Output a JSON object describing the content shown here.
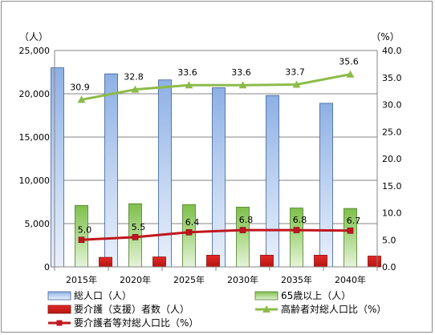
{
  "chart_data": {
    "type": "bar",
    "categories": [
      "2015年",
      "2020年",
      "2025年",
      "2030年",
      "2035年",
      "2040年"
    ],
    "left_axis": {
      "unit": "（人）",
      "ylim": [
        0,
        25000
      ],
      "ticks": [
        "0",
        "5,000",
        "10,000",
        "15,000",
        "20,000",
        "25,000"
      ]
    },
    "right_axis": {
      "unit": "（%）",
      "ylim": [
        0,
        40
      ],
      "ticks": [
        "0.0",
        "5.0",
        "10.0",
        "15.0",
        "20.0",
        "25.0",
        "30.0",
        "35.0",
        "40.0"
      ]
    },
    "grid": true,
    "legend_position": "bottom",
    "series": [
      {
        "name": "総人口（人）",
        "kind": "bar",
        "axis": "left",
        "color": "#9ab8e6",
        "values": [
          23000,
          22300,
          21600,
          20700,
          19800,
          18900
        ]
      },
      {
        "name": "65歳以上（人）",
        "kind": "bar",
        "axis": "left",
        "color": "#8cc55c",
        "values": [
          7100,
          7300,
          7200,
          6900,
          6800,
          6750
        ]
      },
      {
        "name": "要介護（支援）者数（人）",
        "kind": "bar",
        "axis": "left",
        "color": "#e02020",
        "values": [
          1100,
          1150,
          1350,
          1350,
          1350,
          1250
        ]
      },
      {
        "name": "高齢者対総人口比（%）",
        "kind": "line",
        "axis": "right",
        "color": "#8dbb4a",
        "marker": "triangle",
        "values": [
          30.9,
          32.8,
          33.6,
          33.6,
          33.7,
          35.6
        ],
        "labels": [
          "30.9",
          "32.8",
          "33.6",
          "33.6",
          "33.7",
          "35.6"
        ]
      },
      {
        "name": "要介護者等対総人口比（%）",
        "kind": "line",
        "axis": "right",
        "color": "#c0161e",
        "marker": "square",
        "values": [
          5.0,
          5.5,
          6.4,
          6.8,
          6.8,
          6.7
        ],
        "labels": [
          "5.0",
          "5.5",
          "6.4",
          "6.8",
          "6.8",
          "6.7"
        ]
      }
    ]
  }
}
